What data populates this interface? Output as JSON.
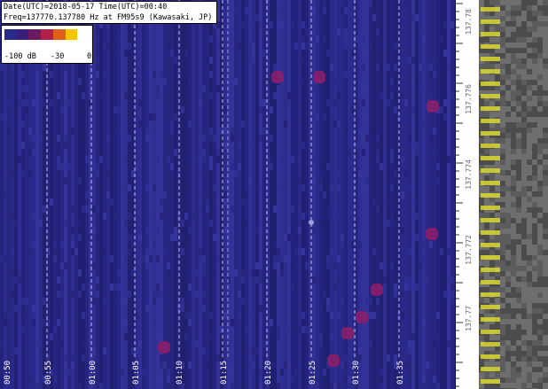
{
  "info": {
    "line1": "Date(UTC)=2018-05-17 Time(UTC)=00:40",
    "line2": "Freq=137770.137780 Hz at FM95s9 (Kawasaki, JP)"
  },
  "legend": {
    "min_label": "-100 dB",
    "mid_label": "-30",
    "max_label": "0",
    "colors": [
      "#2b2b8c",
      "#3a1f7a",
      "#6a1a60",
      "#b0204a",
      "#e0601a",
      "#f5c400",
      "#ffffff"
    ]
  },
  "time_labels": [
    "00:50",
    "00:55",
    "01:00",
    "01:05",
    "01:10",
    "01:15",
    "01:20",
    "01:25",
    "01:30",
    "01:35"
  ],
  "ruler_labels": [
    "137.78",
    "137.776",
    "137.774",
    "137.772",
    "137.77"
  ],
  "colors": {
    "background": "#2b2b8c",
    "signal": "#8a1f6a",
    "side_panel": "#5a5a5a",
    "side_highlight": "#d8d830"
  }
}
